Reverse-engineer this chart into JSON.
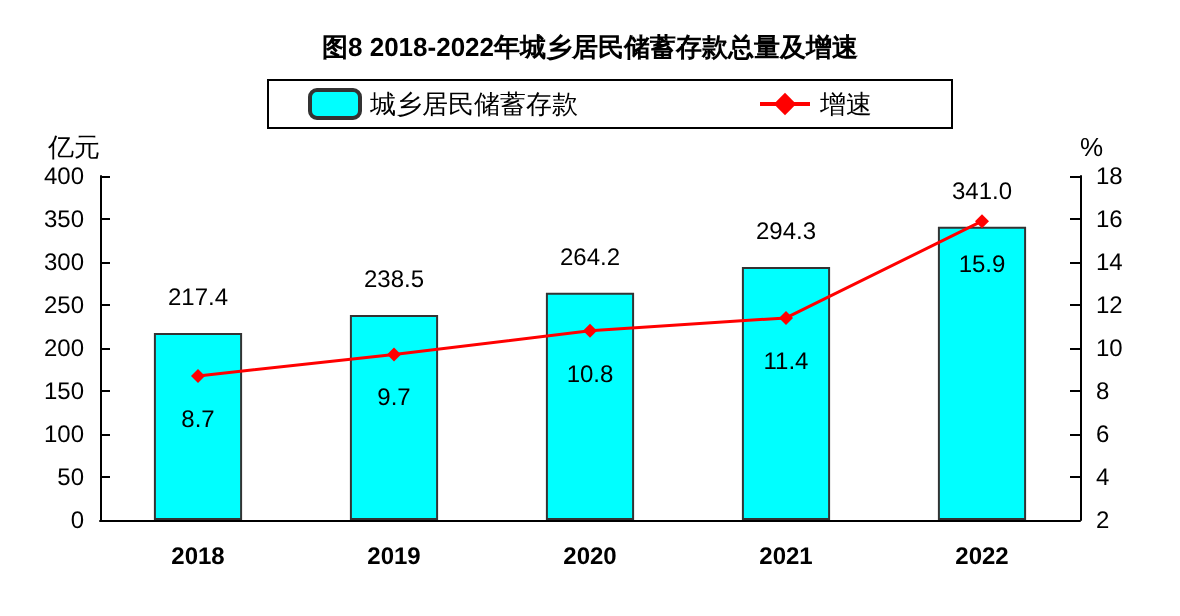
{
  "chart_data": {
    "type": "bar",
    "title": "图8 2018-2022年城乡居民储蓄存款总量及增速",
    "categories": [
      "2018",
      "2019",
      "2020",
      "2021",
      "2022"
    ],
    "ylabel": "亿元",
    "y2label": "%",
    "series": [
      {
        "name": "城乡居民储蓄存款",
        "color": "#00ffff",
        "values": [
          217.4,
          238.5,
          264.2,
          294.3,
          341.0
        ],
        "value_labels": [
          "217.4",
          "238.5",
          "264.2",
          "294.3",
          "341.0"
        ]
      },
      {
        "name": "增速",
        "type": "line",
        "axis": "y2",
        "color": "#ff0000",
        "values": [
          8.7,
          9.7,
          10.8,
          11.4,
          15.9
        ]
      }
    ],
    "ylim": [
      0,
      400
    ],
    "yticks": [
      0,
      50,
      100,
      150,
      200,
      250,
      300,
      350,
      400
    ],
    "y2lim": [
      2,
      18
    ],
    "y2ticks": [
      2,
      4,
      6,
      8,
      10,
      12,
      14,
      16,
      18
    ],
    "data_labels": true,
    "marker": "diamond",
    "legend": "top",
    "grid": false
  }
}
